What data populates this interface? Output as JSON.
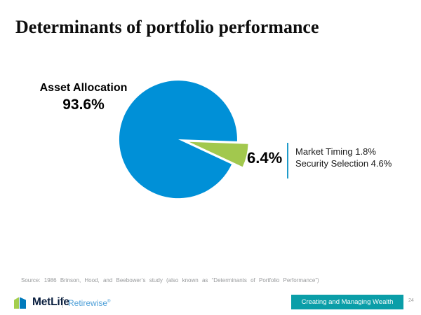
{
  "slide": {
    "title": "Determinants of portfolio performance",
    "source": "Source: 1986 Brinson, Hood, and Beebower’s study (also known as “Determinants of Portfolio Performance”)",
    "page_number": "24"
  },
  "chart": {
    "main_label": "Asset Allocation",
    "main_value": "93.6%",
    "small_value": "6.4%",
    "breakdown_line1": "Market Timing 1.8%",
    "breakdown_line2": "Security Selection 4.6%"
  },
  "chart_data": {
    "type": "pie",
    "title": "Determinants of portfolio performance",
    "slices": [
      {
        "label": "Asset Allocation",
        "value": 93.6,
        "color": "#0090d7",
        "exploded": false
      },
      {
        "label": "Market Timing and Security Selection",
        "value": 6.4,
        "color": "#a2c84e",
        "exploded": true
      }
    ],
    "breakdown_of_small_slice": [
      {
        "label": "Market Timing",
        "value": 1.8
      },
      {
        "label": "Security Selection",
        "value": 4.6
      }
    ],
    "value_unit": "percent",
    "legend_position": "none",
    "annotations": [
      "Asset Allocation 93.6%",
      "6.4%",
      "Market Timing 1.8%",
      "Security Selection 4.6%"
    ]
  },
  "footer": {
    "brand": "MetLife",
    "program": "Retirewise",
    "program_mark": "®",
    "tagline": "Creating and Managing Wealth"
  },
  "colors": {
    "pie_main": "#0090d7",
    "pie_small": "#a2c84e",
    "callout_rule": "#1f9bc9",
    "banner_teal": "#0a9ea8",
    "brand_navy": "#0a1f3f",
    "program_blue": "#4fa0d8",
    "source_gray": "#97999b"
  }
}
